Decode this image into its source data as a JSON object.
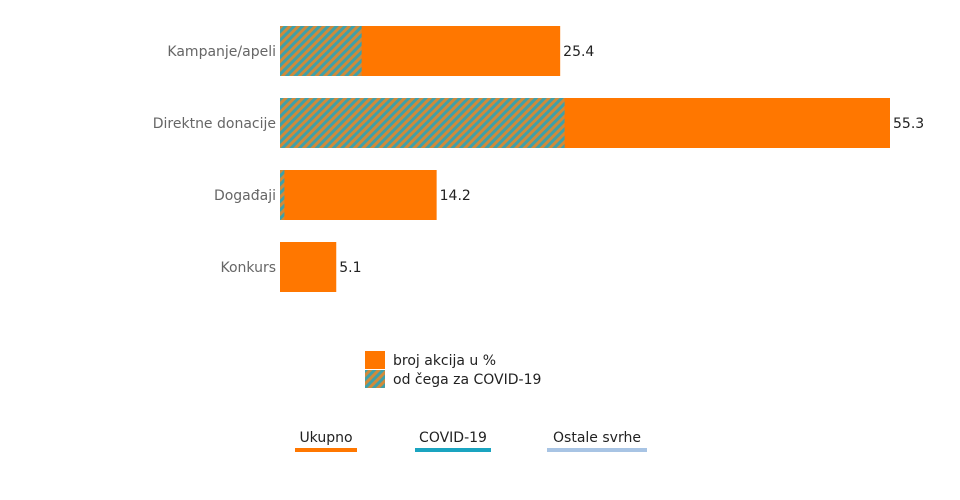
{
  "colors": {
    "total": "#FF7700",
    "covid_a": "#3FA0A8",
    "covid_b": "#D08A3A",
    "tab_ukupno": "#FF7700",
    "tab_covid": "#1AA4C0",
    "tab_ostale": "#A8C4E4"
  },
  "chart_data": {
    "type": "bar",
    "orientation": "horizontal",
    "categories": [
      "Kampanje/apeli",
      "Direktne donacije",
      "Događaji",
      "Konkurs"
    ],
    "series": [
      {
        "name": "broj akcija u %",
        "values": [
          25.4,
          55.3,
          14.2,
          5.1
        ]
      },
      {
        "name": "od čega za COVID-19",
        "values": [
          7.4,
          25.8,
          0.4,
          0
        ]
      }
    ],
    "data_labels": [
      "25.4",
      "55.3",
      "14.2",
      "5.1"
    ],
    "xlim": [
      0,
      55.3
    ],
    "grid": false,
    "legend_position": "bottom-center"
  },
  "tabs": [
    {
      "label": "Ukupno"
    },
    {
      "label": "COVID-19"
    },
    {
      "label": "Ostale svrhe"
    }
  ]
}
